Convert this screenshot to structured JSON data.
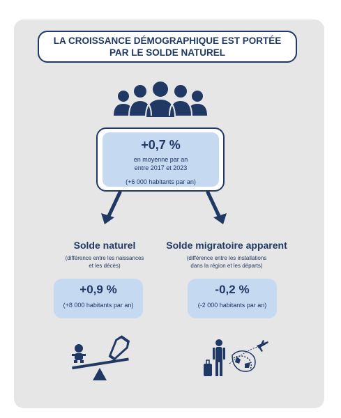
{
  "title": {
    "line1": "LA CROISSANCE DÉMOGRAPHIQUE EST PORTÉE",
    "line2": "PAR LE SOLDE NATUREL"
  },
  "main": {
    "value": "+0,7 %",
    "sub_line1": "en moyenne par an",
    "sub_line2": "entre 2017 et 2023",
    "inhabitants": "(+6 000 habitants par an)"
  },
  "natural": {
    "title": "Solde naturel",
    "desc_line1": "(différence entre les naissances",
    "desc_line2": "et les décès)",
    "value": "+0,9 %",
    "inhabitants": "(+8 000 habitants par an)"
  },
  "migration": {
    "title": "Solde migratoire apparent",
    "desc_line1": "(différence entre les installations",
    "desc_line2": "dans la région et les départs)",
    "value": "-0,2 %",
    "inhabitants": "(-2 000 habitants par an)"
  },
  "colors": {
    "navy": "#1f3864",
    "light_blue": "#c5d9f1",
    "card_grey": "#e7e6e6"
  },
  "icons": [
    "people-group-icon",
    "arrow-down-left-icon",
    "arrow-down-right-icon",
    "baby-coffin-seesaw-icon",
    "traveler-globe-plane-icon"
  ]
}
